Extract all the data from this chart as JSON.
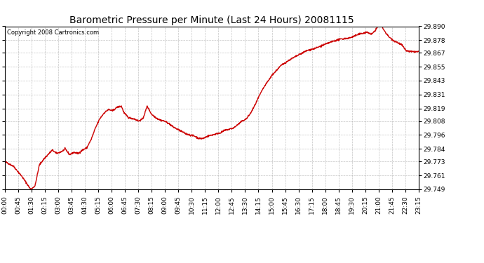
{
  "title": "Barometric Pressure per Minute (Last 24 Hours) 20081115",
  "copyright": "Copyright 2008 Cartronics.com",
  "line_color": "#cc0000",
  "background_color": "#ffffff",
  "grid_color": "#aaaaaa",
  "yticks": [
    29.749,
    29.761,
    29.773,
    29.784,
    29.796,
    29.808,
    29.819,
    29.831,
    29.843,
    29.855,
    29.867,
    29.878,
    29.89
  ],
  "xtick_labels": [
    "00:00",
    "00:45",
    "01:30",
    "02:15",
    "03:00",
    "03:45",
    "04:30",
    "05:15",
    "06:00",
    "06:45",
    "07:30",
    "08:15",
    "09:00",
    "09:45",
    "10:30",
    "11:15",
    "12:00",
    "12:45",
    "13:30",
    "14:15",
    "15:00",
    "15:45",
    "16:30",
    "17:15",
    "18:00",
    "18:45",
    "19:30",
    "20:15",
    "21:00",
    "21:45",
    "22:30",
    "23:15"
  ],
  "ylim_min": 29.749,
  "ylim_max": 29.89,
  "line_width": 1.0,
  "title_fontsize": 10,
  "copyright_fontsize": 6,
  "tick_fontsize": 6.5,
  "waypoints": [
    [
      0,
      29.773
    ],
    [
      30,
      29.769
    ],
    [
      60,
      29.76
    ],
    [
      90,
      29.749
    ],
    [
      105,
      29.752
    ],
    [
      120,
      29.77
    ],
    [
      135,
      29.775
    ],
    [
      150,
      29.779
    ],
    [
      165,
      29.783
    ],
    [
      180,
      29.78
    ],
    [
      200,
      29.782
    ],
    [
      210,
      29.784
    ],
    [
      225,
      29.779
    ],
    [
      240,
      29.781
    ],
    [
      255,
      29.78
    ],
    [
      270,
      29.783
    ],
    [
      285,
      29.785
    ],
    [
      300,
      29.792
    ],
    [
      315,
      29.802
    ],
    [
      330,
      29.81
    ],
    [
      345,
      29.815
    ],
    [
      360,
      29.818
    ],
    [
      375,
      29.817
    ],
    [
      390,
      29.82
    ],
    [
      405,
      29.821
    ],
    [
      415,
      29.815
    ],
    [
      430,
      29.811
    ],
    [
      450,
      29.81
    ],
    [
      465,
      29.808
    ],
    [
      480,
      29.81
    ],
    [
      495,
      29.821
    ],
    [
      510,
      29.814
    ],
    [
      525,
      29.811
    ],
    [
      540,
      29.809
    ],
    [
      555,
      29.808
    ],
    [
      570,
      29.806
    ],
    [
      585,
      29.803
    ],
    [
      600,
      29.801
    ],
    [
      615,
      29.799
    ],
    [
      630,
      29.797
    ],
    [
      645,
      29.796
    ],
    [
      660,
      29.795
    ],
    [
      675,
      29.793
    ],
    [
      690,
      29.793
    ],
    [
      705,
      29.795
    ],
    [
      720,
      29.796
    ],
    [
      735,
      29.797
    ],
    [
      750,
      29.798
    ],
    [
      765,
      29.8
    ],
    [
      780,
      29.801
    ],
    [
      795,
      29.802
    ],
    [
      810,
      29.805
    ],
    [
      825,
      29.808
    ],
    [
      840,
      29.81
    ],
    [
      855,
      29.815
    ],
    [
      870,
      29.822
    ],
    [
      885,
      29.83
    ],
    [
      900,
      29.837
    ],
    [
      930,
      29.848
    ],
    [
      960,
      29.856
    ],
    [
      990,
      29.861
    ],
    [
      1020,
      29.865
    ],
    [
      1050,
      29.869
    ],
    [
      1080,
      29.871
    ],
    [
      1110,
      29.874
    ],
    [
      1140,
      29.877
    ],
    [
      1170,
      29.879
    ],
    [
      1200,
      29.88
    ],
    [
      1230,
      29.883
    ],
    [
      1260,
      29.885
    ],
    [
      1275,
      29.883
    ],
    [
      1290,
      29.887
    ],
    [
      1305,
      29.893
    ],
    [
      1320,
      29.886
    ],
    [
      1335,
      29.881
    ],
    [
      1350,
      29.878
    ],
    [
      1365,
      29.876
    ],
    [
      1380,
      29.874
    ],
    [
      1395,
      29.869
    ],
    [
      1410,
      29.868
    ],
    [
      1435,
      29.868
    ],
    [
      1439,
      29.868
    ]
  ]
}
